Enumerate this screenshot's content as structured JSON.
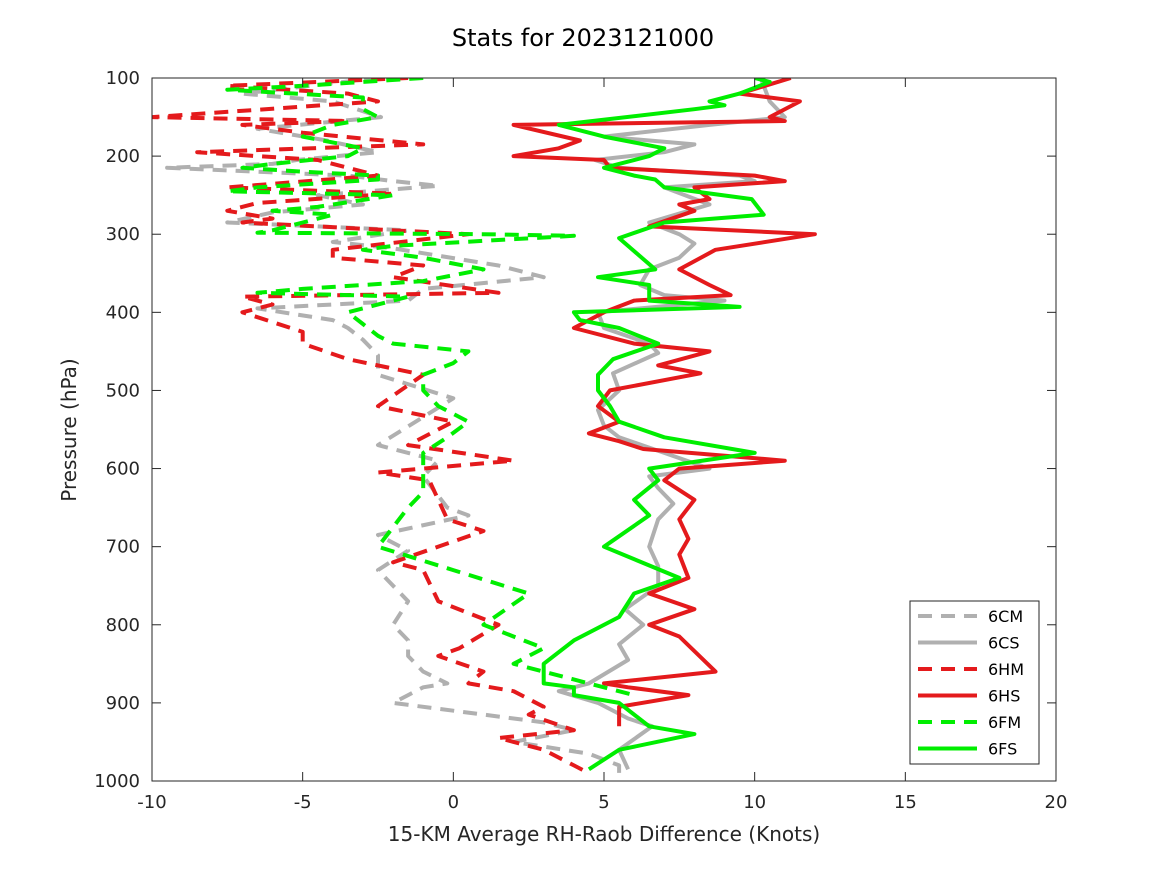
{
  "chart_data": {
    "type": "line",
    "title": "Stats for 2023121000",
    "xlabel": "15-KM Average RH-Raob Difference (Knots)",
    "ylabel": "Pressure (hPa)",
    "xlim": [
      -10,
      20
    ],
    "ylim": [
      100,
      1000
    ],
    "y_inverted": true,
    "x_ticks": [
      -10,
      -5,
      0,
      5,
      10,
      15,
      20
    ],
    "y_ticks": [
      100,
      200,
      300,
      400,
      500,
      600,
      700,
      800,
      900,
      1000
    ],
    "grid": false,
    "legend_position": "bottom-right",
    "series": [
      {
        "name": "6CM",
        "color": "#b0b0b0",
        "style": "dashed",
        "x": [
          -2.5,
          -7.0,
          -4.0,
          -2.4,
          -6.5,
          -4.2,
          -2.5,
          -5.2,
          -6.0,
          -9.5,
          -3.5,
          -2.0,
          -0.5,
          -4.5,
          -3.0,
          -6.0,
          -7.5,
          -1.5,
          -4.0,
          -2.0,
          1.5,
          3.0,
          -1.0,
          -1.5,
          -6.5,
          -4.0,
          -3.5,
          -3.0,
          -2.5,
          -2.5,
          0.0,
          -2.5,
          -0.5,
          -1.0,
          -0.5,
          -0.2,
          0.5,
          -2.5,
          -1.5,
          -2.5,
          -1.5,
          -2.0,
          -1.5,
          -1.5,
          -1.0,
          -0.2,
          -1.0,
          -1.5,
          -2.0,
          1.0,
          3.0,
          4.0,
          2.0,
          4.5,
          5.5,
          5.5
        ],
        "y": [
          100,
          120,
          130,
          150,
          165,
          180,
          195,
          205,
          210,
          215,
          225,
          232,
          238,
          250,
          262,
          272,
          285,
          295,
          310,
          318,
          340,
          355,
          370,
          385,
          395,
          410,
          420,
          435,
          455,
          480,
          510,
          570,
          590,
          610,
          635,
          650,
          660,
          685,
          705,
          730,
          770,
          800,
          820,
          840,
          860,
          875,
          880,
          890,
          900,
          915,
          925,
          935,
          950,
          965,
          980,
          990
        ]
      },
      {
        "name": "6CS",
        "color": "#b0b0b0",
        "style": "solid",
        "x": [
          10.2,
          10.5,
          11.0,
          8.5,
          5.0,
          8.0,
          7.0,
          4.7,
          5.5,
          9.5,
          10.0,
          7.0,
          8.5,
          6.5,
          7.5,
          8.0,
          7.5,
          6.5,
          6.2,
          7.0,
          9.0,
          4.8,
          5.0,
          6.5,
          6.8,
          5.3,
          5.5,
          4.8,
          5.0,
          5.5,
          7.0,
          8.5,
          6.5,
          6.8,
          7.3,
          6.8,
          6.5,
          6.8,
          6.8,
          5.7,
          6.3,
          5.5,
          5.8,
          4.5,
          3.5,
          4.8,
          5.8,
          6.6,
          5.5,
          5.8
        ],
        "y": [
          100,
          130,
          150,
          160,
          175,
          185,
          195,
          205,
          215,
          225,
          232,
          240,
          262,
          285,
          300,
          312,
          330,
          345,
          365,
          378,
          385,
          400,
          420,
          440,
          452,
          478,
          500,
          525,
          545,
          560,
          580,
          600,
          610,
          625,
          645,
          665,
          700,
          725,
          750,
          780,
          800,
          825,
          845,
          875,
          885,
          900,
          920,
          930,
          960,
          985
        ]
      },
      {
        "name": "6HM",
        "color": "#e41a1c",
        "style": "dashed",
        "x": [
          -1.5,
          -7.5,
          -3.5,
          -2.5,
          -10.0,
          -3.5,
          -7.0,
          -5.0,
          -1.0,
          -8.5,
          -4.5,
          -2.5,
          -7.5,
          -2.0,
          -6.5,
          -7.5,
          -6.0,
          -7.0,
          0.5,
          -4.0,
          -4.0,
          -1.0,
          -2.0,
          1.5,
          -7.0,
          -6.0,
          -7.0,
          -5.0,
          -5.0,
          -3.5,
          -1.0,
          -2.5,
          0.0,
          -1.5,
          2.0,
          -2.5,
          -0.8,
          -0.5,
          -0.2,
          1.0,
          -2.0,
          -1.0,
          -0.5,
          1.5,
          0.2,
          -0.5,
          1.0,
          0.5,
          2.0,
          3.0,
          2.5,
          4.0,
          1.5,
          3.0,
          4.0,
          4.5
        ],
        "y": [
          100,
          110,
          120,
          130,
          150,
          155,
          160,
          170,
          185,
          195,
          205,
          225,
          240,
          248,
          260,
          270,
          280,
          285,
          300,
          320,
          330,
          340,
          355,
          375,
          380,
          390,
          400,
          425,
          440,
          460,
          480,
          520,
          540,
          570,
          590,
          605,
          615,
          640,
          665,
          680,
          720,
          730,
          770,
          800,
          830,
          840,
          860,
          875,
          885,
          905,
          915,
          935,
          945,
          960,
          980,
          990
        ]
      },
      {
        "name": "6HS",
        "color": "#e41a1c",
        "style": "solid",
        "x": [
          11.2,
          9.5,
          11.5,
          10.5,
          11.0,
          2.0,
          4.2,
          3.5,
          2.0,
          5.0,
          5.2,
          10.0,
          11.0,
          8.0,
          8.5,
          7.5,
          8.0,
          6.5,
          12.0,
          8.7,
          7.5,
          8.5,
          9.2,
          6.0,
          5.0,
          4.0,
          6.0,
          8.5,
          6.8,
          8.2,
          5.2,
          4.8,
          5.5,
          4.5,
          5.5,
          6.3,
          11.0,
          7.5,
          7.0,
          8.0,
          7.5,
          7.8,
          7.5,
          7.8,
          6.5,
          8.0,
          6.5,
          7.5,
          8.7,
          5.0,
          5.8,
          7.8,
          5.5,
          5.5
        ],
        "y": [
          100,
          120,
          130,
          150,
          155,
          160,
          180,
          190,
          200,
          205,
          215,
          225,
          232,
          240,
          255,
          262,
          270,
          290,
          300,
          320,
          345,
          365,
          378,
          385,
          400,
          420,
          440,
          450,
          468,
          478,
          500,
          520,
          540,
          555,
          565,
          575,
          590,
          600,
          615,
          640,
          665,
          690,
          710,
          740,
          760,
          780,
          800,
          815,
          860,
          875,
          880,
          890,
          905,
          930
        ]
      },
      {
        "name": "6FS",
        "color": "#00ee00",
        "style": "solid",
        "x": [
          10.0,
          10.5,
          9.5,
          8.5,
          9.0,
          8.0,
          3.5,
          5.0,
          7.0,
          6.5,
          5.0,
          6.0,
          6.7,
          7.0,
          9.9,
          10.3,
          7.0,
          5.5,
          6.7,
          4.8,
          6.5,
          6.5,
          9.5,
          4.0,
          4.2,
          5.5,
          6.8,
          5.3,
          4.8,
          4.8,
          5.2,
          5.5,
          7.0,
          10.0,
          6.5,
          6.8,
          6.0,
          6.5,
          5.0,
          7.5,
          6.0,
          5.5,
          4.0,
          3.0,
          3.0,
          4.0,
          4.0,
          5.5,
          6.5,
          8.0,
          5.5,
          4.5
        ],
        "y": [
          100,
          105,
          120,
          130,
          135,
          140,
          160,
          175,
          190,
          200,
          215,
          225,
          230,
          240,
          255,
          275,
          285,
          305,
          345,
          355,
          365,
          385,
          393,
          400,
          410,
          420,
          440,
          460,
          480,
          500,
          520,
          540,
          560,
          580,
          600,
          615,
          640,
          660,
          700,
          740,
          760,
          790,
          820,
          850,
          875,
          880,
          890,
          900,
          930,
          940,
          960,
          985
        ]
      },
      {
        "name": "6FM",
        "color": "#00ee00",
        "style": "dashed",
        "x": [
          -1.0,
          -5.0,
          -7.5,
          -3.0,
          -3.0,
          -2.5,
          -4.0,
          -5.0,
          -3.0,
          -3.5,
          -6.0,
          -7.0,
          -5.0,
          -2.5,
          -2.5,
          -6.5,
          -7.5,
          -2.0,
          -4.5,
          -6.0,
          -4.0,
          -5.0,
          -6.0,
          -6.5,
          1.0,
          4.0,
          -2.0,
          -3.0,
          -1.0,
          1.0,
          -1.0,
          -3.0,
          -5.0,
          -6.5,
          -3.5,
          -1.5,
          -2.0,
          -3.5,
          -3.0,
          -2.5,
          -2.0,
          0.5,
          0.0,
          -1.0,
          -1.0,
          -0.5,
          0.5,
          -0.2,
          -1.0,
          -1.0,
          -1.0,
          -1.5,
          -2.0,
          -2.5,
          0.0,
          2.5,
          1.0,
          3.0,
          2.0,
          3.0,
          4.5,
          6.0
        ],
        "y": [
          100,
          110,
          115,
          125,
          140,
          150,
          160,
          175,
          190,
          200,
          210,
          215,
          220,
          225,
          230,
          240,
          245,
          250,
          265,
          270,
          275,
          285,
          295,
          298,
          300,
          302,
          315,
          320,
          330,
          345,
          360,
          365,
          370,
          375,
          378,
          380,
          385,
          400,
          415,
          430,
          440,
          450,
          465,
          480,
          500,
          520,
          540,
          560,
          580,
          600,
          630,
          650,
          675,
          700,
          730,
          760,
          800,
          830,
          850,
          860,
          875,
          890
        ]
      }
    ]
  }
}
